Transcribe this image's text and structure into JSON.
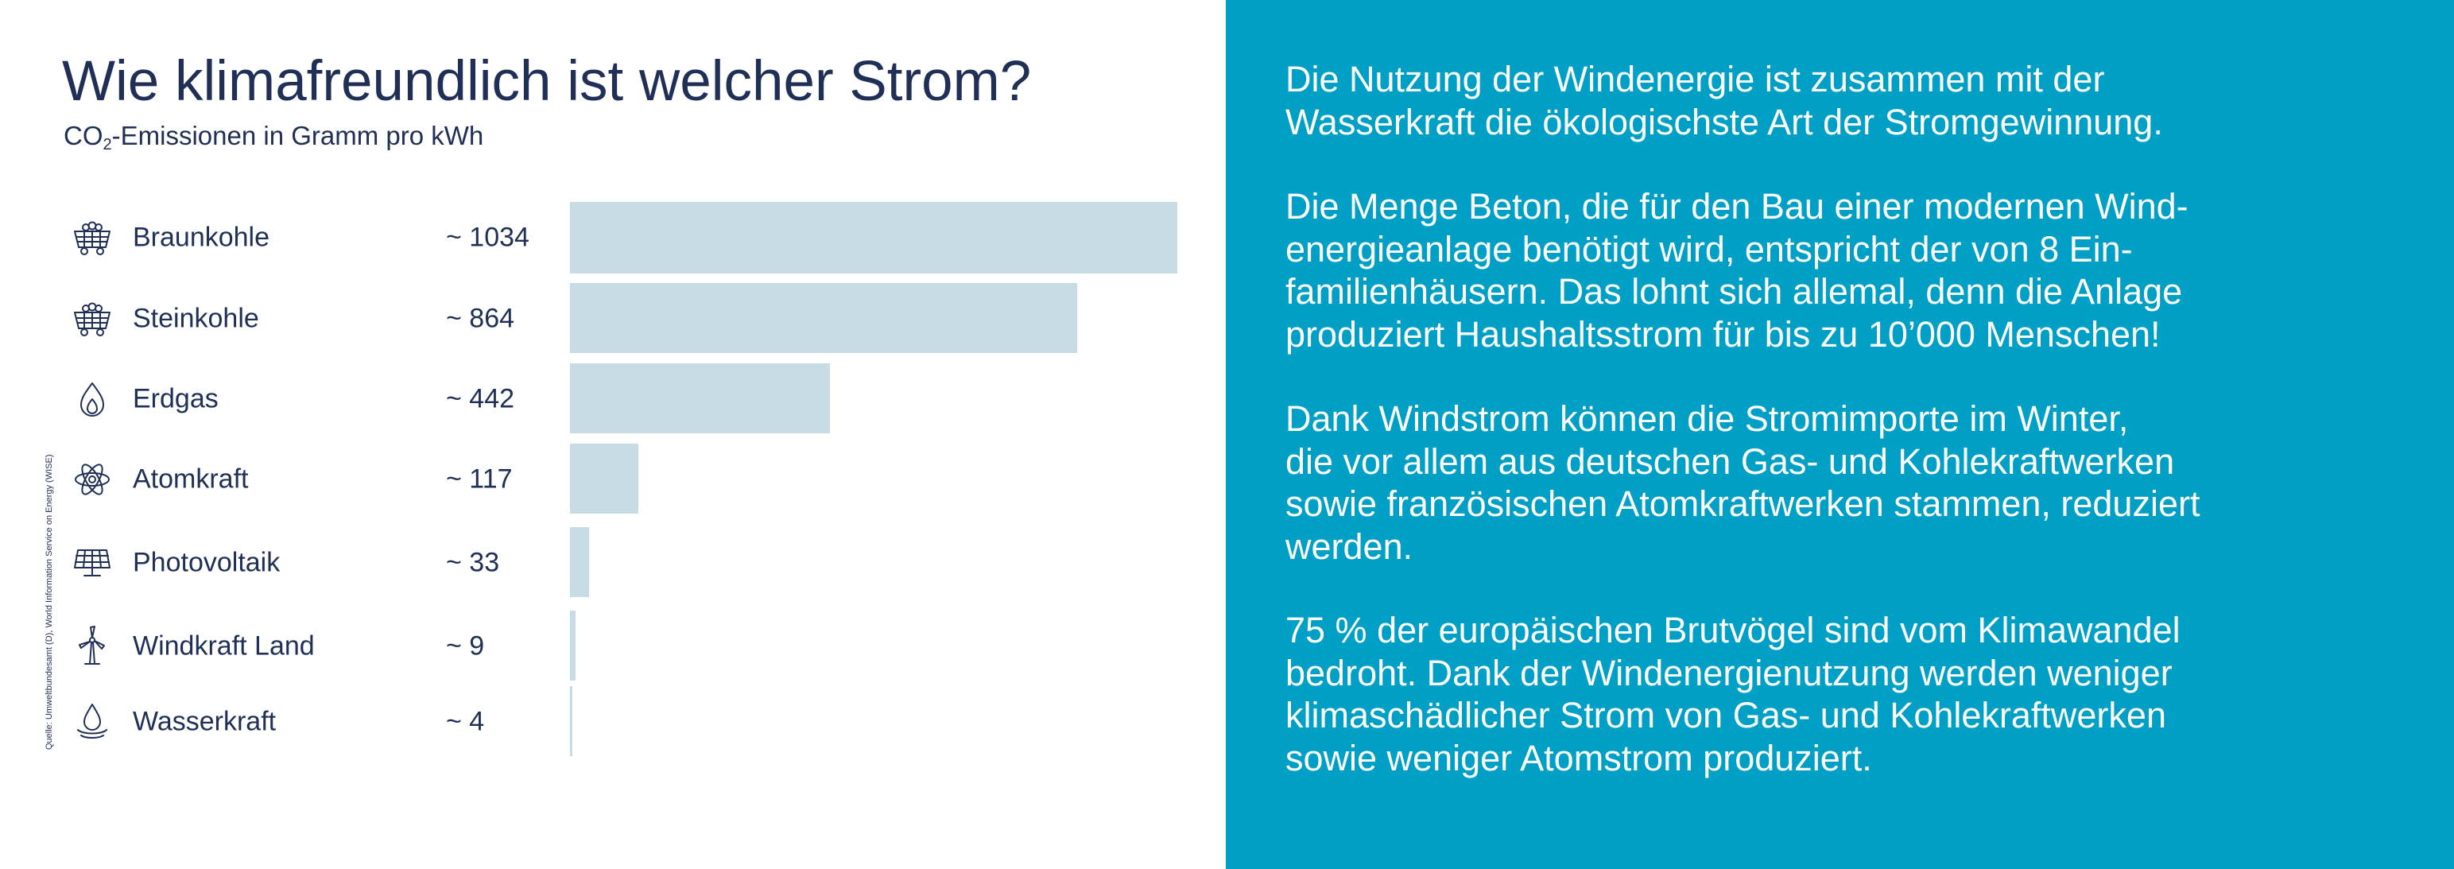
{
  "colors": {
    "title_text": "#1f2f55",
    "bar": "#c8dce6",
    "right_panel_bg": "#00a0c6",
    "right_panel_text": "#ffffff"
  },
  "left": {
    "title": "Wie klimafreundlich ist welcher Strom?",
    "subtitle_pre": "CO",
    "subtitle_sub": "2",
    "subtitle_post": "-Emissionen in Gramm pro kWh",
    "source": "Quelle: Umweltbundesamt (D), World Information Service on Energy (WISE)"
  },
  "chart_data": {
    "type": "bar",
    "orientation": "horizontal",
    "title": "Wie klimafreundlich ist welcher Strom?",
    "subtitle": "CO2-Emissionen in Gramm pro kWh",
    "categories": [
      "Braunkohle",
      "Steinkohle",
      "Erdgas",
      "Atomkraft",
      "Photovoltaik",
      "Windkraft Land",
      "Wasserkraft"
    ],
    "values": [
      1034,
      864,
      442,
      117,
      33,
      9,
      4
    ],
    "value_labels": [
      "~ 1034",
      "~ 864",
      "~ 442",
      "~ 117",
      "~ 33",
      "~ 9",
      "~ 4"
    ],
    "icons": [
      "coal-cart-icon",
      "coal-cart-icon",
      "flame-icon",
      "atom-icon",
      "solar-panel-icon",
      "wind-turbine-icon",
      "water-drop-icon"
    ],
    "xlim": [
      0,
      1034
    ],
    "grid": false,
    "legend": "none"
  },
  "right": {
    "paragraphs": [
      [
        "Die Nutzung der Windenergie ist zusammen mit der",
        "Wasserkraft die ökologischste Art der Stromgewinnung."
      ],
      [
        "Die Menge Beton, die für den Bau einer modernen Wind-",
        "energieanlage benötigt wird, entspricht der von 8 Ein-",
        "familienhäusern. Das lohnt sich allemal, denn die Anlage",
        "produziert Haushaltsstrom für bis zu 10’000 Menschen!"
      ],
      [
        "Dank Windstrom können die Stromimporte im Winter,",
        "die vor allem aus deutschen Gas- und Kohlekraftwerken",
        "sowie französischen Atomkraftwerken stammen, reduziert",
        "werden."
      ],
      [
        "75 % der europäischen Brutvögel sind vom Klimawandel",
        "bedroht. Dank der Windenergienutzung werden weniger",
        "klimaschädlicher Strom von Gas- und Kohlekraftwerken",
        "sowie weniger Atomstrom produziert."
      ]
    ]
  }
}
